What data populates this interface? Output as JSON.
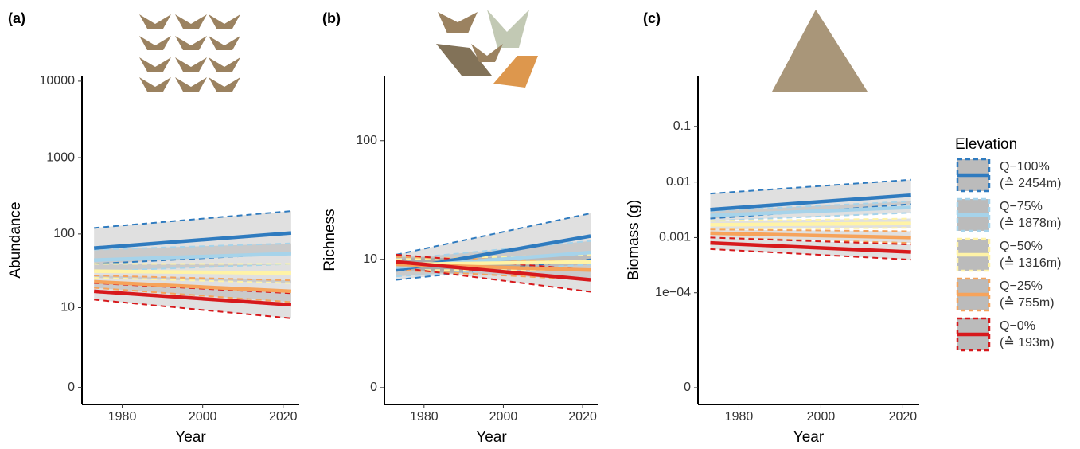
{
  "chart_data": [
    {
      "type": "line",
      "panel_label": "(a)",
      "y_label": "Abundance",
      "x_label": "Year",
      "y_scale": "pseudo_log",
      "y_offset": 1,
      "x": [
        1973,
        2022
      ],
      "xlim": [
        1970,
        2024
      ],
      "xticks": [
        1980,
        2000,
        2020
      ],
      "ylim": [
        -0.4,
        11800
      ],
      "yticks": [
        0,
        10,
        100,
        1000,
        10000
      ],
      "series": [
        {
          "color": "#2f7bbf",
          "values": [
            65,
            103
          ],
          "ci_lower": [
            40,
            55
          ],
          "ci_upper": [
            120,
            200
          ]
        },
        {
          "color": "#a6d3ea",
          "values": [
            45,
            55
          ],
          "ci_lower": [
            32,
            40
          ],
          "ci_upper": [
            62,
            75
          ]
        },
        {
          "color": "#fff3a6",
          "values": [
            32,
            30
          ],
          "ci_lower": [
            26,
            22
          ],
          "ci_upper": [
            40,
            40
          ]
        },
        {
          "color": "#f6a35b",
          "values": [
            23,
            17
          ],
          "ci_lower": [
            19,
            12
          ],
          "ci_upper": [
            28,
            24
          ]
        },
        {
          "color": "#d7191c",
          "values": [
            17,
            11
          ],
          "ci_lower": [
            13,
            7
          ],
          "ci_upper": [
            22,
            16
          ]
        }
      ]
    },
    {
      "type": "line",
      "panel_label": "(b)",
      "y_label": "Richness",
      "x_label": "Year",
      "y_scale": "pseudo_log",
      "y_offset": 1,
      "x": [
        1973,
        2022
      ],
      "xlim": [
        1970,
        2024
      ],
      "xticks": [
        1980,
        2000,
        2020
      ],
      "ylim": [
        -0.27,
        340
      ],
      "yticks": [
        0,
        10,
        100
      ],
      "series": [
        {
          "color": "#2f7bbf",
          "values": [
            8,
            16
          ],
          "ci_lower": [
            6.5,
            10
          ],
          "ci_upper": [
            11,
            25
          ]
        },
        {
          "color": "#a6d3ea",
          "values": [
            8.5,
            11.5
          ],
          "ci_lower": [
            7,
            9
          ],
          "ci_upper": [
            10,
            14.5
          ]
        },
        {
          "color": "#fff3a6",
          "values": [
            9,
            9.5
          ],
          "ci_lower": [
            8,
            8
          ],
          "ci_upper": [
            10,
            11
          ]
        },
        {
          "color": "#f6a35b",
          "values": [
            9,
            8
          ],
          "ci_lower": [
            8,
            6.5
          ],
          "ci_upper": [
            10.5,
            9.5
          ]
        },
        {
          "color": "#d7191c",
          "values": [
            9.5,
            6.5
          ],
          "ci_lower": [
            8.5,
            5
          ],
          "ci_upper": [
            11,
            8
          ]
        }
      ]
    },
    {
      "type": "line",
      "panel_label": "(c)",
      "y_label": "Biomass (g)",
      "x_label": "Year",
      "y_scale": "pseudo_log",
      "y_offset": 2e-06,
      "x": [
        1973,
        2022
      ],
      "xlim": [
        1970,
        2024
      ],
      "xticks": [
        1980,
        2000,
        2020
      ],
      "ylim": [
        -1e-06,
        0.82
      ],
      "yticks": [
        0,
        {
          "value": 0.0001,
          "label": "1e−04"
        },
        0.001,
        0.01,
        0.1
      ],
      "series": [
        {
          "color": "#2f7bbf",
          "values": [
            0.0032,
            0.0058
          ],
          "ci_lower": [
            0.0022,
            0.004
          ],
          "ci_upper": [
            0.0062,
            0.011
          ]
        },
        {
          "color": "#a6d3ea",
          "values": [
            0.0025,
            0.0035
          ],
          "ci_lower": [
            0.002,
            0.0028
          ],
          "ci_upper": [
            0.003,
            0.0045
          ]
        },
        {
          "color": "#fff3a6",
          "values": [
            0.0017,
            0.0018
          ],
          "ci_lower": [
            0.0014,
            0.0015
          ],
          "ci_upper": [
            0.002,
            0.0022
          ]
        },
        {
          "color": "#f6a35b",
          "values": [
            0.0012,
            0.001
          ],
          "ci_lower": [
            0.001,
            0.0008
          ],
          "ci_upper": [
            0.0014,
            0.0013
          ]
        },
        {
          "color": "#d7191c",
          "values": [
            0.0008,
            0.00055
          ],
          "ci_lower": [
            0.00062,
            0.0004
          ],
          "ci_upper": [
            0.001,
            0.00075
          ]
        }
      ]
    }
  ],
  "legend": {
    "title": "Elevation",
    "items": [
      {
        "label": "Q−100%",
        "detail": "(≙ 2454m)",
        "color": "#2f7bbf"
      },
      {
        "label": "Q−75%",
        "detail": "(≙ 1878m)",
        "color": "#a6d3ea"
      },
      {
        "label": "Q−50%",
        "detail": "(≙ 1316m)",
        "color": "#fff3a6"
      },
      {
        "label": "Q−25%",
        "detail": "(≙ 755m)",
        "color": "#f6a35b"
      },
      {
        "label": "Q−0%",
        "detail": "(≙ 193m)",
        "color": "#d7191c"
      }
    ]
  }
}
